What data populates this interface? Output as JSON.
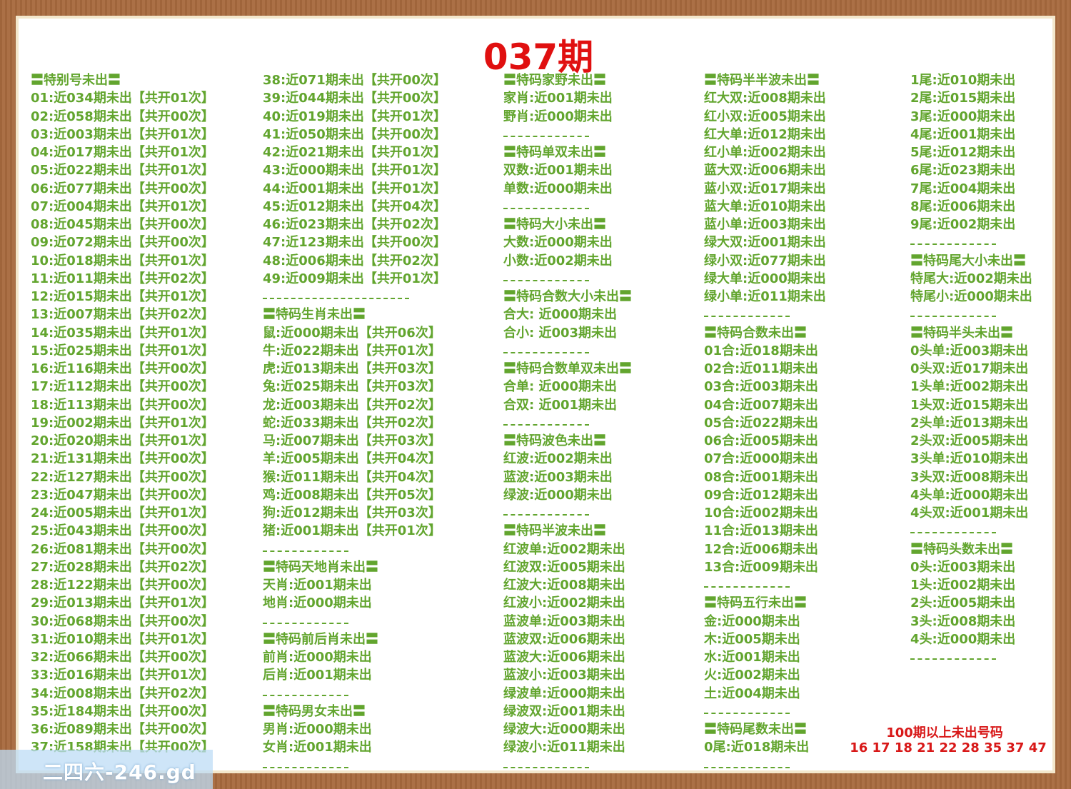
{
  "header": {
    "title": "037期"
  },
  "columns": [
    {
      "sections": [
        {
          "heading": "〓特别号未出〓",
          "lines": [
            "01:近034期未出【共开01次】",
            "02:近058期未出【共开00次】",
            "03:近003期未出【共开01次】",
            "04:近017期未出【共开01次】",
            "05:近022期未出【共开01次】",
            "06:近077期未出【共开00次】",
            "07:近004期未出【共开01次】",
            "08:近045期未出【共开00次】",
            "09:近072期未出【共开00次】",
            "10:近018期未出【共开01次】",
            "11:近011期未出【共开02次】",
            "12:近015期未出【共开01次】",
            "13:近007期未出【共开02次】",
            "14:近035期未出【共开01次】",
            "15:近025期未出【共开01次】",
            "16:近116期未出【共开00次】",
            "17:近112期未出【共开00次】",
            "18:近113期未出【共开00次】",
            "19:近002期未出【共开01次】",
            "20:近020期未出【共开01次】",
            "21:近131期未出【共开00次】",
            "22:近127期未出【共开00次】",
            "23:近047期未出【共开00次】",
            "24:近005期未出【共开01次】",
            "25:近043期未出【共开00次】",
            "26:近081期未出【共开00次】",
            "27:近028期未出【共开02次】",
            "28:近122期未出【共开00次】",
            "29:近013期未出【共开01次】",
            "30:近068期未出【共开00次】",
            "31:近010期未出【共开01次】",
            "32:近066期未出【共开00次】",
            "33:近016期未出【共开01次】",
            "34:近008期未出【共开02次】",
            "35:近184期未出【共开00次】",
            "36:近089期未出【共开00次】",
            "37:近158期未出【共开00次】"
          ]
        }
      ]
    },
    {
      "sections": [
        {
          "lines": [
            "38:近071期未出【共开00次】",
            "39:近044期未出【共开00次】",
            "40:近019期未出【共开01次】",
            "41:近050期未出【共开00次】",
            "42:近021期未出【共开01次】",
            "43:近000期未出【共开01次】",
            "44:近001期未出【共开01次】",
            "45:近012期未出【共开04次】",
            "46:近023期未出【共开02次】",
            "47:近123期未出【共开00次】",
            "48:近006期未出【共开02次】",
            "49:近009期未出【共开01次】"
          ]
        },
        {
          "heading": "〓特码生肖未出〓",
          "lines": [
            "鼠:近000期未出【共开06次】",
            "牛:近022期未出【共开01次】",
            "虎:近013期未出【共开03次】",
            "兔:近025期未出【共开03次】",
            "龙:近003期未出【共开02次】",
            "蛇:近033期未出【共开02次】",
            "马:近007期未出【共开03次】",
            "羊:近005期未出【共开04次】",
            "猴:近011期未出【共开04次】",
            "鸡:近008期未出【共开05次】",
            "狗:近012期未出【共开03次】",
            "猪:近001期未出【共开01次】"
          ]
        },
        {
          "heading": "〓特码天地肖未出〓",
          "lines": [
            "天肖:近001期未出",
            "地肖:近000期未出"
          ]
        },
        {
          "heading": "〓特码前后肖未出〓",
          "lines": [
            "前肖:近000期未出",
            "后肖:近001期未出"
          ]
        },
        {
          "heading": "〓特码男女未出〓",
          "lines": [
            "男肖:近000期未出",
            "女肖:近001期未出"
          ]
        }
      ]
    },
    {
      "sections": [
        {
          "heading": "〓特码家野未出〓",
          "lines": [
            "家肖:近001期未出",
            "野肖:近000期未出"
          ]
        },
        {
          "heading": "〓特码单双未出〓",
          "lines": [
            "双数:近001期未出",
            "单数:近000期未出"
          ]
        },
        {
          "heading": "〓特码大小未出〓",
          "lines": [
            "大数:近000期未出",
            "小数:近002期未出"
          ]
        },
        {
          "heading": "〓特码合数大小未出〓",
          "lines": [
            "合大: 近000期未出",
            "合小: 近003期未出"
          ]
        },
        {
          "heading": "〓特码合数单双未出〓",
          "lines": [
            "合单: 近000期未出",
            "合双: 近001期未出"
          ]
        },
        {
          "heading": "〓特码波色未出〓",
          "lines": [
            "红波:近002期未出",
            "蓝波:近003期未出",
            "绿波:近000期未出"
          ]
        },
        {
          "heading": "〓特码半波未出〓",
          "lines": [
            "红波单:近002期未出",
            "红波双:近005期未出",
            "红波大:近008期未出",
            "红波小:近002期未出",
            "蓝波单:近003期未出",
            "蓝波双:近006期未出",
            "蓝波大:近006期未出",
            "蓝波小:近003期未出",
            "绿波单:近000期未出",
            "绿波双:近001期未出",
            "绿波大:近000期未出",
            "绿波小:近011期未出"
          ]
        }
      ]
    },
    {
      "sections": [
        {
          "heading": "〓特码半半波未出〓",
          "lines": [
            "红大双:近008期未出",
            "红小双:近005期未出",
            "红大单:近012期未出",
            "红小单:近002期未出",
            "蓝大双:近006期未出",
            "蓝小双:近017期未出",
            "蓝大单:近010期未出",
            "蓝小单:近003期未出",
            "绿大双:近001期未出",
            "绿小双:近077期未出",
            "绿大单:近000期未出",
            "绿小单:近011期未出"
          ]
        },
        {
          "heading": "〓特码合数未出〓",
          "lines": [
            "01合:近018期未出",
            "02合:近011期未出",
            "03合:近003期未出",
            "04合:近007期未出",
            "05合:近022期未出",
            "06合:近005期未出",
            "07合:近000期未出",
            "08合:近001期未出",
            "09合:近012期未出",
            "10合:近002期未出",
            "11合:近013期未出",
            "12合:近006期未出",
            "13合:近009期未出"
          ]
        },
        {
          "heading": "〓特码五行未出〓",
          "lines": [
            "金:近000期未出",
            "木:近005期未出",
            "水:近001期未出",
            "火:近002期未出",
            "土:近004期未出"
          ]
        },
        {
          "heading": "〓特码尾数未出〓",
          "lines": [
            "0尾:近018期未出"
          ]
        }
      ]
    },
    {
      "sections": [
        {
          "lines": [
            "1尾:近010期未出",
            "2尾:近015期未出",
            "3尾:近000期未出",
            "4尾:近001期未出",
            "5尾:近012期未出",
            "6尾:近023期未出",
            "7尾:近004期未出",
            "8尾:近006期未出",
            "9尾:近002期未出"
          ]
        },
        {
          "heading": "〓特码尾大小未出〓",
          "lines": [
            "特尾大:近002期未出",
            "特尾小:近000期未出"
          ]
        },
        {
          "heading": "〓特码半头未出〓",
          "lines": [
            "0头单:近003期未出",
            "0头双:近017期未出",
            "1头单:近002期未出",
            "1头双:近015期未出",
            "2头单:近013期未出",
            "2头双:近005期未出",
            "3头单:近010期未出",
            "3头双:近008期未出",
            "4头单:近000期未出",
            "4头双:近001期未出"
          ]
        },
        {
          "heading": "〓特码头数未出〓",
          "lines": [
            "0头:近003期未出",
            "1头:近002期未出",
            "2头:近005期未出",
            "3头:近008期未出",
            "4头:近000期未出"
          ]
        }
      ]
    }
  ],
  "footer_note": {
    "title": "100期以上未出号码",
    "numbers": "16 17 18 21 22 28 35 37 47"
  },
  "watermark": "二四六-246.gd"
}
